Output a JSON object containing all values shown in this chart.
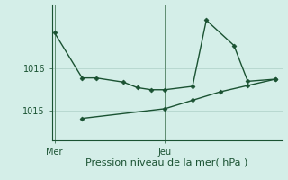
{
  "xlabel": "Pression niveau de la mer( hPa )",
  "background_color": "#d4eee8",
  "grid_color": "#b8d8d0",
  "line_color": "#1a5232",
  "vline_color": "#4a7a5a",
  "xtick_labels": [
    "Mer",
    "Jeu"
  ],
  "xtick_positions": [
    0,
    8
  ],
  "ylim": [
    1014.3,
    1017.5
  ],
  "ytick_positions": [
    1015,
    1016
  ],
  "xlim": [
    -0.2,
    16.5
  ],
  "line1_x": [
    0,
    2,
    3,
    5,
    6,
    7,
    8,
    10,
    11,
    13,
    14,
    16
  ],
  "line1_y": [
    1016.85,
    1015.78,
    1015.78,
    1015.68,
    1015.55,
    1015.5,
    1015.5,
    1015.58,
    1017.15,
    1016.55,
    1015.7,
    1015.75
  ],
  "line2_x": [
    2,
    8,
    10,
    12,
    14,
    16
  ],
  "line2_y": [
    1014.82,
    1015.05,
    1015.25,
    1015.45,
    1015.6,
    1015.75
  ],
  "xlabel_fontsize": 8,
  "ytick_fontsize": 7,
  "xtick_fontsize": 7
}
